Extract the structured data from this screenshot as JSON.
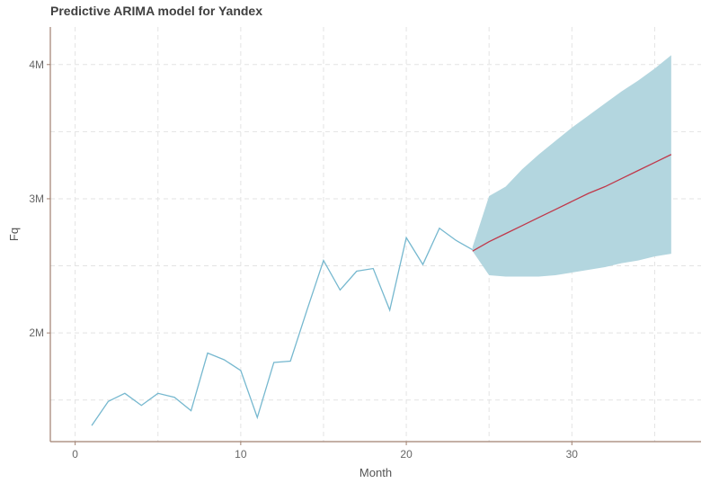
{
  "chart_data": {
    "type": "line",
    "title": "Predictive ARIMA model for Yandex",
    "xlabel": "Month",
    "ylabel": "Fq",
    "xlim": [
      -1.5,
      37.8
    ],
    "ylim": [
      1190000,
      4280000
    ],
    "xticks": [
      0,
      10,
      20,
      30
    ],
    "yticks": [
      2000000,
      3000000,
      4000000
    ],
    "ytick_labels": [
      "2M",
      "3M",
      "4M"
    ],
    "grid": true,
    "grid_style": "dashed",
    "legend": "none",
    "colors": {
      "observed": "#76b8cf",
      "forecast": "#c0384a",
      "band": "#b3d6df",
      "axis": "#a08070",
      "grid": "#e3e3e3"
    },
    "series": [
      {
        "x": [
          1,
          2,
          3,
          4,
          5,
          6,
          7,
          8,
          9,
          10,
          11,
          12,
          13,
          14,
          15,
          16,
          17,
          18,
          19,
          20,
          21,
          22,
          23,
          24
        ],
        "values": [
          1310000,
          1490000,
          1550000,
          1460000,
          1550000,
          1520000,
          1420000,
          1850000,
          1800000,
          1720000,
          1370000,
          1780000,
          1790000,
          2170000,
          2540000,
          2320000,
          2460000,
          2480000,
          2170000,
          2710000,
          2510000,
          2780000,
          2690000,
          2620000
        ]
      },
      {
        "x": [
          24,
          25,
          26,
          27,
          28,
          29,
          30,
          31,
          32,
          33,
          34,
          35,
          36
        ],
        "values": [
          2610000,
          2680000,
          2740000,
          2800000,
          2860000,
          2920000,
          2980000,
          3040000,
          3090000,
          3150000,
          3210000,
          3270000,
          3330000
        ],
        "lower": [
          2610000,
          2430000,
          2420000,
          2420000,
          2420000,
          2430000,
          2450000,
          2470000,
          2490000,
          2520000,
          2540000,
          2570000,
          2590000
        ],
        "upper": [
          2640000,
          3020000,
          3090000,
          3220000,
          3330000,
          3430000,
          3530000,
          3620000,
          3710000,
          3800000,
          3880000,
          3970000,
          4070000
        ]
      }
    ]
  }
}
